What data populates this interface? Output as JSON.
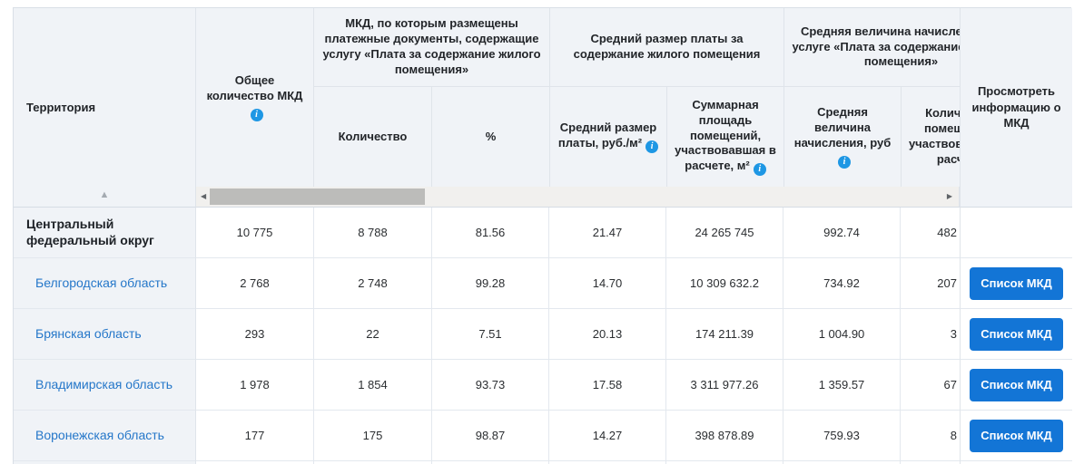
{
  "icons": {
    "info": "i",
    "sort_asc": "▲",
    "scroll_left": "◀",
    "scroll_right": "▶"
  },
  "table": {
    "headers": {
      "territory": "Территория",
      "total_mkd": "Общее количество МКД",
      "group_payment_docs": "МКД, по которым размещены платежные документы, содержащие услугу «Плата за содержание жилого помещения»",
      "quantity": "Количество",
      "percent": "%",
      "group_avg_fee": "Средний размер платы за содержание жилого помещения",
      "avg_fee": "Средний размер платы, руб./м²",
      "total_area": "Суммарная площадь помещений, участвовавшая в расчете, м²",
      "group_avg_accrual": "Средняя величина начислений по услуге «Плата за содержание жилого помещения»",
      "avg_accrual": "Средняя величина начисления, руб",
      "rooms_count": "Количество помещений, участвовавших в расчете",
      "view_info": "Просмотреть информацию о МКД"
    },
    "rows": [
      {
        "territory": "Центральный федеральный округ",
        "total": "10 775",
        "qty": "8 788",
        "pct": "81.56",
        "fee": "21.47",
        "area": "24 265 745",
        "accrual": "992.74",
        "rooms": "482"
      },
      {
        "territory": "Белгородская область",
        "total": "2 768",
        "qty": "2 748",
        "pct": "99.28",
        "fee": "14.70",
        "area": "10 309 632.2",
        "accrual": "734.92",
        "rooms": "207",
        "button": "Список МКД"
      },
      {
        "territory": "Брянская область",
        "total": "293",
        "qty": "22",
        "pct": "7.51",
        "fee": "20.13",
        "area": "174 211.39",
        "accrual": "1 004.90",
        "rooms": "3",
        "button": "Список МКД"
      },
      {
        "territory": "Владимирская область",
        "total": "1 978",
        "qty": "1 854",
        "pct": "93.73",
        "fee": "17.58",
        "area": "3 311 977.26",
        "accrual": "1 359.57",
        "rooms": "67",
        "button": "Список МКД"
      },
      {
        "territory": "Воронежская область",
        "total": "177",
        "qty": "175",
        "pct": "98.87",
        "fee": "14.27",
        "area": "398 878.89",
        "accrual": "759.93",
        "rooms": "8",
        "button": "Список МКД"
      }
    ]
  }
}
